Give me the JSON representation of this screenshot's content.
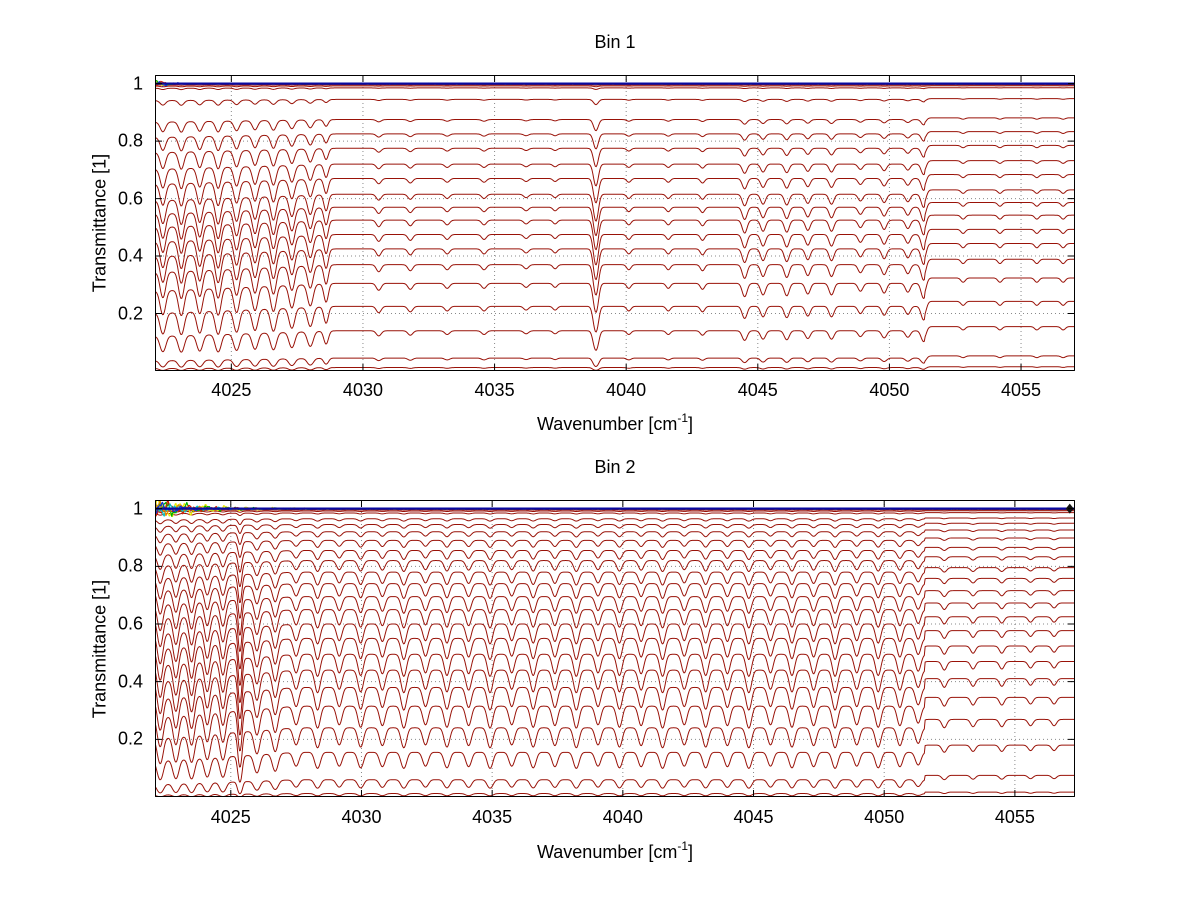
{
  "window": {
    "background": "#ffffff"
  },
  "chart_data": [
    {
      "type": "line",
      "title": "Bin 1",
      "xlabel": {
        "pre": "Wavenumber [cm",
        "sup": "-1",
        "post": "]"
      },
      "ylabel": "Transmittance [1]",
      "xlim": [
        4022.1,
        4057.05
      ],
      "ylim": [
        0,
        1.03
      ],
      "xticks": [
        4025,
        4030,
        4035,
        4040,
        4045,
        4050,
        4055
      ],
      "yticks": [
        0.2,
        0.4,
        0.6,
        0.8,
        1
      ],
      "grid_style": "dotted",
      "legend": "none",
      "series_color": "#991208",
      "baselines": [
        0.999,
        0.996,
        0.992,
        0.985,
        0.945,
        0.875,
        0.825,
        0.775,
        0.72,
        0.67,
        0.615,
        0.57,
        0.525,
        0.475,
        0.425,
        0.37,
        0.305,
        0.225,
        0.14,
        0.045,
        0.012
      ],
      "absorption_lines": [
        [
          4022.4,
          0.1,
          0.3
        ],
        [
          4023.1,
          0.1,
          0.32
        ],
        [
          4023.8,
          0.1,
          0.3
        ],
        [
          4024.5,
          0.1,
          0.33
        ],
        [
          4025.2,
          0.1,
          0.3
        ],
        [
          4025.9,
          0.1,
          0.28
        ],
        [
          4026.6,
          0.1,
          0.3
        ],
        [
          4027.3,
          0.1,
          0.26
        ],
        [
          4028.0,
          0.1,
          0.24
        ],
        [
          4028.6,
          0.08,
          0.2
        ],
        [
          4030.6,
          0.09,
          0.07
        ],
        [
          4031.8,
          0.09,
          0.06
        ],
        [
          4033.2,
          0.09,
          0.05
        ],
        [
          4034.6,
          0.09,
          0.05
        ],
        [
          4036.2,
          0.09,
          0.04
        ],
        [
          4037.3,
          0.08,
          0.04
        ],
        [
          4038.85,
          0.09,
          0.34
        ],
        [
          4040.1,
          0.08,
          0.05
        ],
        [
          4041.6,
          0.08,
          0.05
        ],
        [
          4042.9,
          0.08,
          0.06
        ],
        [
          4044.5,
          0.09,
          0.14
        ],
        [
          4045.2,
          0.09,
          0.12
        ],
        [
          4046.1,
          0.09,
          0.13
        ],
        [
          4046.9,
          0.09,
          0.11
        ],
        [
          4047.8,
          0.09,
          0.12
        ],
        [
          4048.9,
          0.09,
          0.08
        ],
        [
          4049.8,
          0.09,
          0.1
        ],
        [
          4050.7,
          0.09,
          0.09
        ],
        [
          4051.3,
          0.09,
          0.16
        ],
        [
          4052.8,
          0.08,
          0.04
        ],
        [
          4054.2,
          0.08,
          0.04
        ],
        [
          4055.6,
          0.08,
          0.04
        ],
        [
          4056.6,
          0.08,
          0.04
        ]
      ],
      "continuum": [
        {
          "from": 4022.0,
          "to": 4029.0,
          "k": 0.08,
          "ramp": true
        },
        {
          "from": 4051.35,
          "to": 4057.5,
          "k": -0.05,
          "ramp": false
        }
      ],
      "noise_series": [
        {
          "color": "#1030d8",
          "amp": 0.02,
          "decay": 0.35,
          "seed": 3
        },
        {
          "color": "#d42000",
          "amp": 0.016,
          "decay": 0.3,
          "seed": 5
        },
        {
          "color": "#00b400",
          "amp": 0.013,
          "decay": 0.3,
          "seed": 8
        },
        {
          "color": "#e8e800",
          "amp": 0.012,
          "decay": 0.25,
          "seed": 11
        }
      ],
      "top_lines": [
        {
          "y": 1.0,
          "color": "#0a0aa0",
          "width": 2.2
        }
      ]
    },
    {
      "type": "line",
      "title": "Bin 2",
      "xlabel": {
        "pre": "Wavenumber [cm",
        "sup": "-1",
        "post": "]"
      },
      "ylabel": "Transmittance [1]",
      "xlim": [
        4022.1,
        4057.3
      ],
      "ylim": [
        0,
        1.03
      ],
      "xticks": [
        4025,
        4030,
        4035,
        4040,
        4045,
        4050,
        4055
      ],
      "yticks": [
        0.2,
        0.4,
        0.6,
        0.8,
        1
      ],
      "grid_style": "dotted",
      "legend": "none",
      "series_color": "#991208",
      "baselines": [
        0.999,
        0.996,
        0.992,
        0.985,
        0.965,
        0.945,
        0.92,
        0.89,
        0.855,
        0.82,
        0.78,
        0.74,
        0.695,
        0.65,
        0.6,
        0.55,
        0.495,
        0.44,
        0.38,
        0.315,
        0.24,
        0.155,
        0.06,
        0.012
      ],
      "absorption_lines": [
        [
          4022.3,
          0.1,
          0.4
        ],
        [
          4022.9,
          0.1,
          0.38
        ],
        [
          4023.5,
          0.1,
          0.4
        ],
        [
          4024.1,
          0.1,
          0.36
        ],
        [
          4024.7,
          0.1,
          0.38
        ],
        [
          4025.35,
          0.07,
          0.55
        ],
        [
          4026.0,
          0.1,
          0.3
        ],
        [
          4026.7,
          0.1,
          0.28
        ],
        [
          4027.5,
          0.1,
          0.2
        ],
        [
          4028.32,
          0.1,
          0.24
        ],
        [
          4029.15,
          0.1,
          0.2
        ],
        [
          4029.97,
          0.1,
          0.23
        ],
        [
          4030.8,
          0.1,
          0.21
        ],
        [
          4031.62,
          0.1,
          0.24
        ],
        [
          4032.45,
          0.1,
          0.2
        ],
        [
          4033.27,
          0.1,
          0.23
        ],
        [
          4034.1,
          0.1,
          0.21
        ],
        [
          4034.92,
          0.1,
          0.24
        ],
        [
          4035.75,
          0.1,
          0.2
        ],
        [
          4036.57,
          0.1,
          0.23
        ],
        [
          4037.4,
          0.1,
          0.21
        ],
        [
          4038.22,
          0.1,
          0.24
        ],
        [
          4039.05,
          0.1,
          0.2
        ],
        [
          4039.87,
          0.1,
          0.23
        ],
        [
          4040.7,
          0.1,
          0.21
        ],
        [
          4041.52,
          0.1,
          0.24
        ],
        [
          4042.35,
          0.1,
          0.2
        ],
        [
          4043.17,
          0.1,
          0.23
        ],
        [
          4044.0,
          0.1,
          0.21
        ],
        [
          4044.82,
          0.1,
          0.24
        ],
        [
          4045.65,
          0.1,
          0.2
        ],
        [
          4046.47,
          0.1,
          0.23
        ],
        [
          4047.3,
          0.1,
          0.21
        ],
        [
          4048.12,
          0.1,
          0.24
        ],
        [
          4048.95,
          0.1,
          0.2
        ],
        [
          4049.77,
          0.1,
          0.23
        ],
        [
          4050.6,
          0.1,
          0.21
        ],
        [
          4051.3,
          0.1,
          0.18
        ],
        [
          4052.3,
          0.09,
          0.08
        ],
        [
          4053.4,
          0.09,
          0.07
        ],
        [
          4054.5,
          0.09,
          0.07
        ],
        [
          4055.6,
          0.09,
          0.06
        ],
        [
          4056.5,
          0.09,
          0.06
        ]
      ],
      "continuum": [
        {
          "from": 4022.0,
          "to": 4027.5,
          "k": 0.12,
          "ramp": true
        },
        {
          "from": 4051.55,
          "to": 4057.5,
          "k": -0.08,
          "ramp": false
        }
      ],
      "noise_series": [
        {
          "color": "#e8e800",
          "amp": 0.05,
          "decay": 1.5,
          "seed": 21
        },
        {
          "color": "#00b400",
          "amp": 0.042,
          "decay": 1.3,
          "seed": 22
        },
        {
          "color": "#d42000",
          "amp": 0.038,
          "decay": 1.2,
          "seed": 23
        },
        {
          "color": "#00c8c8",
          "amp": 0.03,
          "decay": 1.1,
          "seed": 24
        },
        {
          "color": "#e88a00",
          "amp": 0.034,
          "decay": 1.0,
          "seed": 25
        },
        {
          "color": "#1030d8",
          "amp": 0.026,
          "decay": 0.9,
          "seed": 26
        }
      ],
      "top_lines": [
        {
          "y": 1.0,
          "color": "#0a0aa0",
          "width": 2.2
        }
      ],
      "end_marker": {
        "x": 4057.1,
        "y": 1.0,
        "color": "#111111",
        "shape": "diamond"
      }
    }
  ]
}
